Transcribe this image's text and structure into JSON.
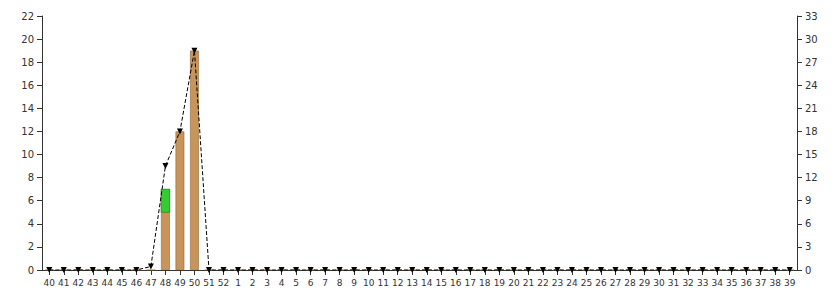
{
  "chart_data": {
    "type": "bar",
    "categories": [
      "40",
      "41",
      "42",
      "43",
      "44",
      "45",
      "46",
      "47",
      "48",
      "49",
      "50",
      "51",
      "52",
      "1",
      "2",
      "3",
      "4",
      "5",
      "6",
      "7",
      "8",
      "9",
      "10",
      "11",
      "12",
      "13",
      "14",
      "15",
      "16",
      "17",
      "18",
      "19",
      "20",
      "21",
      "22",
      "23",
      "24",
      "25",
      "26",
      "27",
      "28",
      "29",
      "30",
      "31",
      "32",
      "33",
      "34",
      "35",
      "36",
      "37",
      "38",
      "39"
    ],
    "series": [
      {
        "type": "bar",
        "color": "#c8945a",
        "values": [
          0,
          0,
          0,
          0,
          0,
          0,
          0,
          0,
          7,
          12,
          19,
          0,
          0,
          0,
          0,
          0,
          0,
          0,
          0,
          0,
          0,
          0,
          0,
          0,
          0,
          0,
          0,
          0,
          0,
          0,
          0,
          0,
          0,
          0,
          0,
          0,
          0,
          0,
          0,
          0,
          0,
          0,
          0,
          0,
          0,
          0,
          0,
          0,
          0,
          0,
          0,
          0
        ]
      },
      {
        "type": "bar",
        "color": "#33cc33",
        "values": [
          0,
          0,
          0,
          0,
          0,
          0,
          0,
          0,
          2,
          0,
          0,
          0,
          0,
          0,
          0,
          0,
          0,
          0,
          0,
          0,
          0,
          0,
          0,
          0,
          0,
          0,
          0,
          0,
          0,
          0,
          0,
          0,
          0,
          0,
          0,
          0,
          0,
          0,
          0,
          0,
          0,
          0,
          0,
          0,
          0,
          0,
          0,
          0,
          0,
          0,
          0,
          0
        ]
      },
      {
        "type": "line",
        "color": "#000000",
        "line_style": "dashed",
        "marker": "triangle_down",
        "values": [
          0,
          0,
          0,
          0,
          0,
          0,
          0,
          0.3,
          9,
          12,
          19,
          0,
          0,
          0,
          0,
          0,
          0,
          0,
          0,
          0,
          0,
          0,
          0,
          0,
          0,
          0,
          0,
          0,
          0,
          0,
          0,
          0,
          0,
          0,
          0,
          0,
          0,
          0,
          0,
          0,
          0,
          0,
          0,
          0,
          0,
          0,
          0,
          0,
          0,
          0,
          0,
          0
        ]
      }
    ],
    "ylim": [
      0,
      22
    ],
    "yticks": [
      0,
      2,
      4,
      6,
      8,
      10,
      12,
      14,
      16,
      18,
      20,
      22
    ],
    "y2lim": [
      0,
      33
    ],
    "y2ticks": [
      0,
      3,
      6,
      9,
      12,
      15,
      18,
      21,
      24,
      27,
      30,
      33
    ],
    "grid": false
  }
}
